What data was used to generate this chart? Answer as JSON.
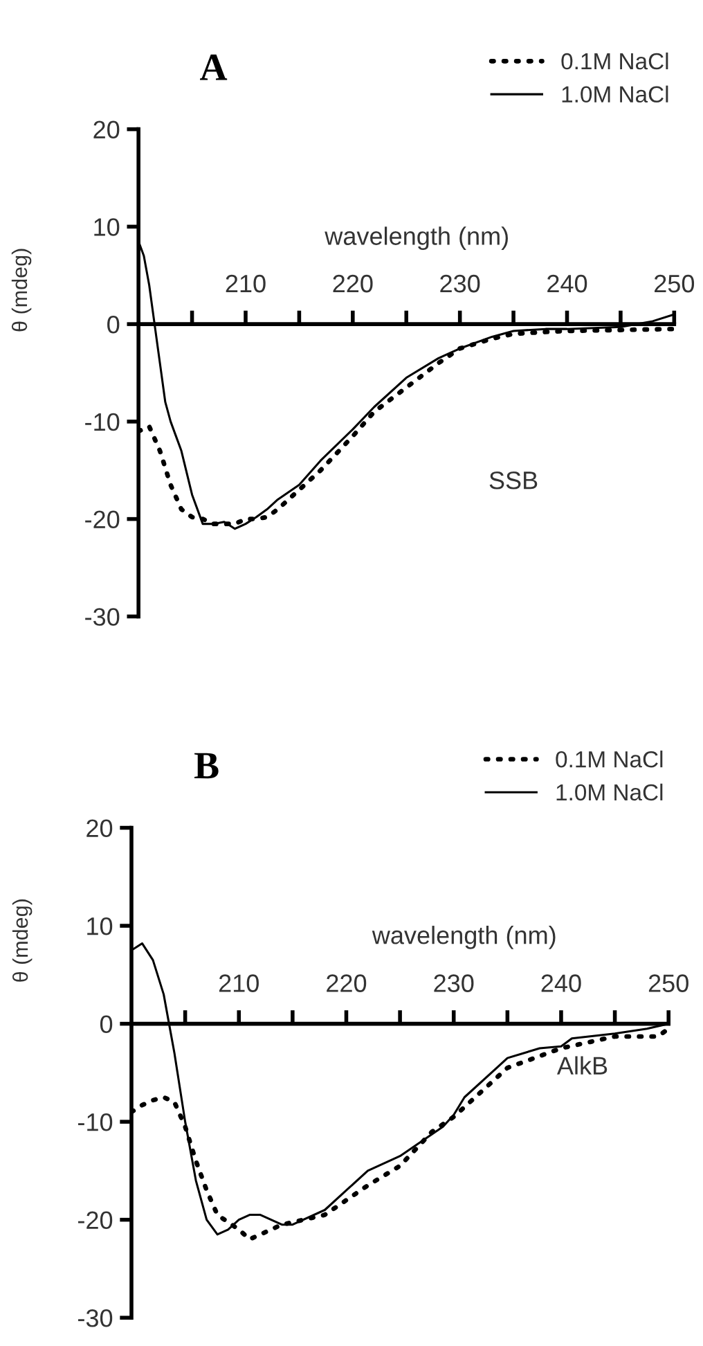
{
  "chart_data": [
    {
      "type": "line",
      "title": "A",
      "xlabel": "wavelength (nm)",
      "ylabel": "θ (mdeg)",
      "legend": "top right",
      "annotations": [
        "SSB"
      ],
      "xlim": [
        200,
        250
      ],
      "ylim": [
        -30,
        20
      ],
      "xticks": [
        {
          "value": 205,
          "label": null
        },
        210,
        {
          "value": 215,
          "label": null
        },
        220,
        {
          "value": 225,
          "label": null
        },
        230,
        {
          "value": 235,
          "label": null
        },
        240,
        {
          "value": 245,
          "label": null
        },
        250
      ],
      "yticks": [
        -30,
        -20,
        -10,
        0,
        10,
        20
      ],
      "series": [
        {
          "name": "0.1M NaCl",
          "color": "#000000",
          "line_style": "dotted",
          "x": [
            200,
            201,
            202,
            203,
            204,
            205,
            206,
            207,
            208,
            209,
            210,
            211,
            212,
            213,
            215,
            217,
            220,
            222,
            225,
            228,
            230,
            233,
            235,
            238,
            240,
            245,
            250
          ],
          "values": [
            -11,
            -10.5,
            -13,
            -16.5,
            -19,
            -19.8,
            -20,
            -20.5,
            -20.5,
            -20.5,
            -20,
            -20,
            -19.8,
            -19,
            -17,
            -15,
            -11.5,
            -9,
            -6.5,
            -4,
            -2.5,
            -1.5,
            -1,
            -0.8,
            -0.7,
            -0.6,
            -0.5
          ]
        },
        {
          "name": "1.0M NaCl",
          "color": "#000000",
          "line_style": "solid",
          "x": [
            200,
            200.5,
            201,
            201.5,
            202,
            202.5,
            203,
            204,
            205,
            206,
            207,
            208,
            209,
            210,
            211,
            212,
            213,
            215,
            217,
            220,
            222,
            225,
            228,
            230,
            233,
            235,
            238,
            240,
            245,
            248,
            250
          ],
          "values": [
            8.5,
            7,
            4,
            0,
            -4,
            -8,
            -10,
            -13,
            -17.5,
            -20.5,
            -20.5,
            -20.3,
            -21,
            -20.5,
            -19.8,
            -19,
            -18,
            -16.5,
            -14,
            -10.8,
            -8.5,
            -5.5,
            -3.5,
            -2.5,
            -1.3,
            -0.7,
            -0.5,
            -0.5,
            -0.3,
            0.3,
            1
          ]
        }
      ]
    },
    {
      "type": "line",
      "title": "B",
      "xlabel": "wavelength (nm)",
      "ylabel": "θ (mdeg)",
      "legend": "top right",
      "annotations": [
        "AlkB"
      ],
      "xlim": [
        200,
        250
      ],
      "ylim": [
        -30,
        20
      ],
      "xticks": [
        {
          "value": 205,
          "label": null
        },
        210,
        {
          "value": 215,
          "label": null
        },
        220,
        {
          "value": 225,
          "label": null
        },
        230,
        {
          "value": 235,
          "label": null
        },
        240,
        {
          "value": 245,
          "label": null
        },
        250
      ],
      "yticks": [
        -30,
        -20,
        -10,
        0,
        10,
        20
      ],
      "series": [
        {
          "name": "0.1M NaCl",
          "color": "#000000",
          "line_style": "dotted",
          "x": [
            200,
            201,
            202,
            203,
            204,
            205,
            206,
            207,
            208,
            210,
            211,
            212,
            214,
            216,
            218,
            220,
            222,
            225,
            228,
            230,
            235,
            240,
            245,
            249,
            250
          ],
          "values": [
            -9,
            -8.3,
            -7.8,
            -7.5,
            -8,
            -10.5,
            -14,
            -17,
            -19.5,
            -21,
            -22,
            -21.5,
            -20.5,
            -20,
            -19.5,
            -18,
            -16.5,
            -14.5,
            -11,
            -9.5,
            -4.5,
            -2.5,
            -1.3,
            -1.3,
            -0.5
          ]
        },
        {
          "name": "1.0M NaCl",
          "color": "#000000",
          "line_style": "solid",
          "x": [
            200,
            201,
            202,
            203,
            203.5,
            204,
            205,
            206,
            207,
            208,
            209,
            210,
            211,
            212,
            214,
            215,
            218,
            220,
            222,
            225,
            227,
            229,
            230,
            231,
            234,
            235,
            238,
            240,
            241,
            245,
            248,
            250
          ],
          "values": [
            7.5,
            8.2,
            6.5,
            3,
            0,
            -3,
            -10,
            -16,
            -20,
            -21.5,
            -21,
            -20,
            -19.5,
            -19.5,
            -20.5,
            -20.5,
            -19,
            -17,
            -15,
            -13.5,
            -12,
            -10.5,
            -9.3,
            -7.5,
            -4.5,
            -3.5,
            -2.5,
            -2.3,
            -1.5,
            -1,
            -0.5,
            0
          ]
        }
      ]
    }
  ]
}
